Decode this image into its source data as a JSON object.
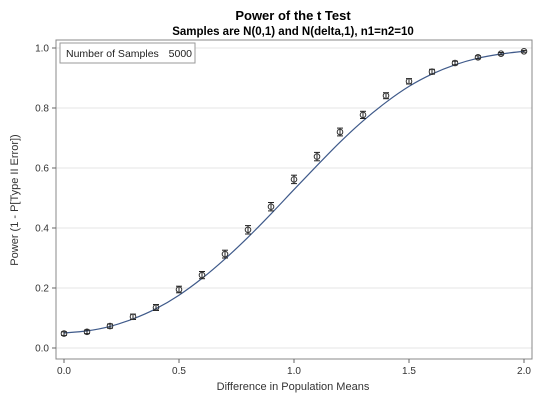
{
  "chart_data": {
    "type": "line",
    "title": "Power of the t Test",
    "subtitle": "Samples are N(0,1) and N(delta,1), n1=n2=10",
    "xlabel": "Difference in Population Means",
    "ylabel": "Power (1 - P[Type II Error])",
    "xlim": [
      0.0,
      2.0
    ],
    "ylim": [
      0.0,
      1.0
    ],
    "x_ticks": [
      "0.0",
      "0.5",
      "1.0",
      "1.5",
      "2.0"
    ],
    "y_ticks": [
      "0.0",
      "0.2",
      "0.4",
      "0.6",
      "0.8",
      "1.0"
    ],
    "grid": "horizontal",
    "inset": {
      "label": "Number of Samples",
      "value": "5000",
      "placement": "top-left"
    },
    "series": [
      {
        "x": [
          0.0,
          0.1,
          0.2,
          0.3,
          0.4,
          0.5,
          0.6,
          0.7,
          0.8,
          0.9,
          1.0,
          1.1,
          1.2,
          1.3,
          1.4,
          1.5,
          1.6,
          1.7,
          1.8,
          1.9,
          2.0
        ],
        "y": [
          0.048,
          0.054,
          0.073,
          0.104,
          0.135,
          0.195,
          0.243,
          0.313,
          0.394,
          0.471,
          0.562,
          0.638,
          0.72,
          0.777,
          0.841,
          0.889,
          0.921,
          0.95,
          0.969,
          0.981,
          0.989
        ],
        "err": [
          0.006,
          0.006,
          0.007,
          0.009,
          0.01,
          0.011,
          0.012,
          0.013,
          0.014,
          0.014,
          0.014,
          0.014,
          0.013,
          0.012,
          0.01,
          0.009,
          0.008,
          0.006,
          0.005,
          0.004,
          0.003
        ],
        "curve": [
          0.05,
          0.057,
          0.072,
          0.097,
          0.131,
          0.176,
          0.232,
          0.297,
          0.369,
          0.447,
          0.528,
          0.608,
          0.686,
          0.757,
          0.819,
          0.872,
          0.913,
          0.944,
          0.966,
          0.98,
          0.989
        ]
      }
    ],
    "colors": {
      "curve": "#3f5a8a",
      "marker": "#333333",
      "errorbar": "#222222",
      "grid": "#e4e4e4",
      "frame": "#888888"
    }
  }
}
